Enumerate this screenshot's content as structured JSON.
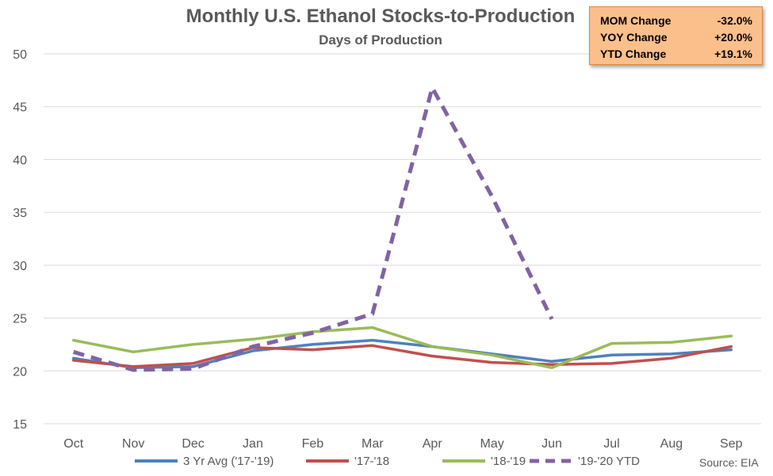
{
  "chart_data": {
    "type": "line",
    "title": "Monthly U.S. Ethanol Stocks-to-Production",
    "subtitle": "Days of Production",
    "categories": [
      "Oct",
      "Nov",
      "Dec",
      "Jan",
      "Feb",
      "Mar",
      "Apr",
      "May",
      "Jun",
      "Jul",
      "Aug",
      "Sep"
    ],
    "ylim": [
      15,
      50
    ],
    "yticks": [
      15,
      20,
      25,
      30,
      35,
      40,
      45,
      50
    ],
    "grid": true,
    "legend_position": "bottom",
    "series": [
      {
        "name": "3 Yr Avg ('17-'19)",
        "color": "#4f81bd",
        "dashed": false,
        "values": [
          21.2,
          20.3,
          20.4,
          21.9,
          22.5,
          22.9,
          22.3,
          21.6,
          20.9,
          21.5,
          21.6,
          22.0
        ]
      },
      {
        "name": "'17-'18",
        "color": "#c0504d",
        "dashed": false,
        "values": [
          21.0,
          20.4,
          20.7,
          22.2,
          22.0,
          22.4,
          21.4,
          20.8,
          20.6,
          20.7,
          21.2,
          22.3
        ]
      },
      {
        "name": "'18-'19",
        "color": "#9bbb59",
        "dashed": false,
        "values": [
          22.9,
          21.8,
          22.5,
          23.0,
          23.7,
          24.1,
          22.3,
          21.5,
          20.3,
          22.6,
          22.7,
          23.3
        ]
      },
      {
        "name": "'19-'20 YTD",
        "color": "#8064a2",
        "dashed": true,
        "values": [
          21.8,
          20.1,
          20.2,
          22.3,
          23.6,
          25.4,
          46.8,
          36.5,
          24.9,
          null,
          null,
          null
        ]
      }
    ]
  },
  "stats_box": {
    "rows": [
      {
        "label": "MOM Change",
        "value": "-32.0%"
      },
      {
        "label": "YOY Change",
        "value": "+20.0%"
      },
      {
        "label": "YTD Change",
        "value": "+19.1%"
      }
    ]
  },
  "source": "Source: EIA"
}
